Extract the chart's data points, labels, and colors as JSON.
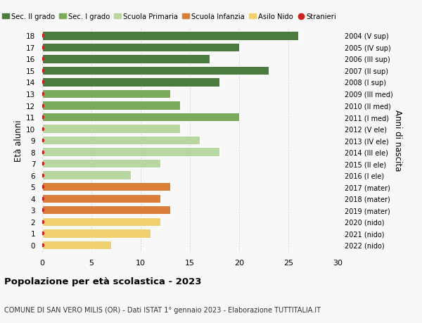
{
  "ages": [
    0,
    1,
    2,
    3,
    4,
    5,
    6,
    7,
    8,
    9,
    10,
    11,
    12,
    13,
    14,
    15,
    16,
    17,
    18
  ],
  "years": [
    "2022 (nido)",
    "2021 (nido)",
    "2020 (nido)",
    "2019 (mater)",
    "2018 (mater)",
    "2017 (mater)",
    "2016 (I ele)",
    "2015 (II ele)",
    "2014 (III ele)",
    "2013 (IV ele)",
    "2012 (V ele)",
    "2011 (I med)",
    "2010 (II med)",
    "2009 (III med)",
    "2008 (I sup)",
    "2007 (II sup)",
    "2006 (III sup)",
    "2005 (IV sup)",
    "2004 (V sup)"
  ],
  "values": [
    7,
    11,
    12,
    13,
    12,
    13,
    9,
    12,
    18,
    16,
    14,
    20,
    14,
    13,
    18,
    23,
    17,
    20,
    26
  ],
  "stranieri": [
    1,
    1,
    1,
    1,
    1,
    1,
    1,
    1,
    1,
    1,
    2,
    1,
    2,
    2,
    1,
    1,
    1,
    1,
    0
  ],
  "bar_colors": [
    "#f0d070",
    "#f0d070",
    "#f0d070",
    "#d97f3a",
    "#d97f3a",
    "#d97f3a",
    "#b8d6a0",
    "#b8d6a0",
    "#b8d6a0",
    "#b8d6a0",
    "#b8d6a0",
    "#7aaa5a",
    "#7aaa5a",
    "#7aaa5a",
    "#4a7c40",
    "#4a7c40",
    "#4a7c40",
    "#4a7c40",
    "#4a7c40"
  ],
  "legend_labels": [
    "Sec. II grado",
    "Sec. I grado",
    "Scuola Primaria",
    "Scuola Infanzia",
    "Asilo Nido",
    "Stranieri"
  ],
  "legend_colors": [
    "#4a7c40",
    "#7aaa5a",
    "#b8d6a0",
    "#d97f3a",
    "#f0d070",
    "#cc2222"
  ],
  "stranieri_color": "#cc2222",
  "bar_edge_color": "#ffffff",
  "grid_color": "#cccccc",
  "bg_color": "#f8f8f8",
  "title_bold": "Popolazione per età scolastica - 2023",
  "subtitle": "COMUNE DI SAN VERO MILIS (OR) - Dati ISTAT 1° gennaio 2023 - Elaborazione TUTTITALIA.IT",
  "ylabel": "Età alunni",
  "right_ylabel": "Anni di nascita",
  "xlim": [
    0,
    30
  ],
  "xticks": [
    0,
    5,
    10,
    15,
    20,
    25,
    30
  ]
}
